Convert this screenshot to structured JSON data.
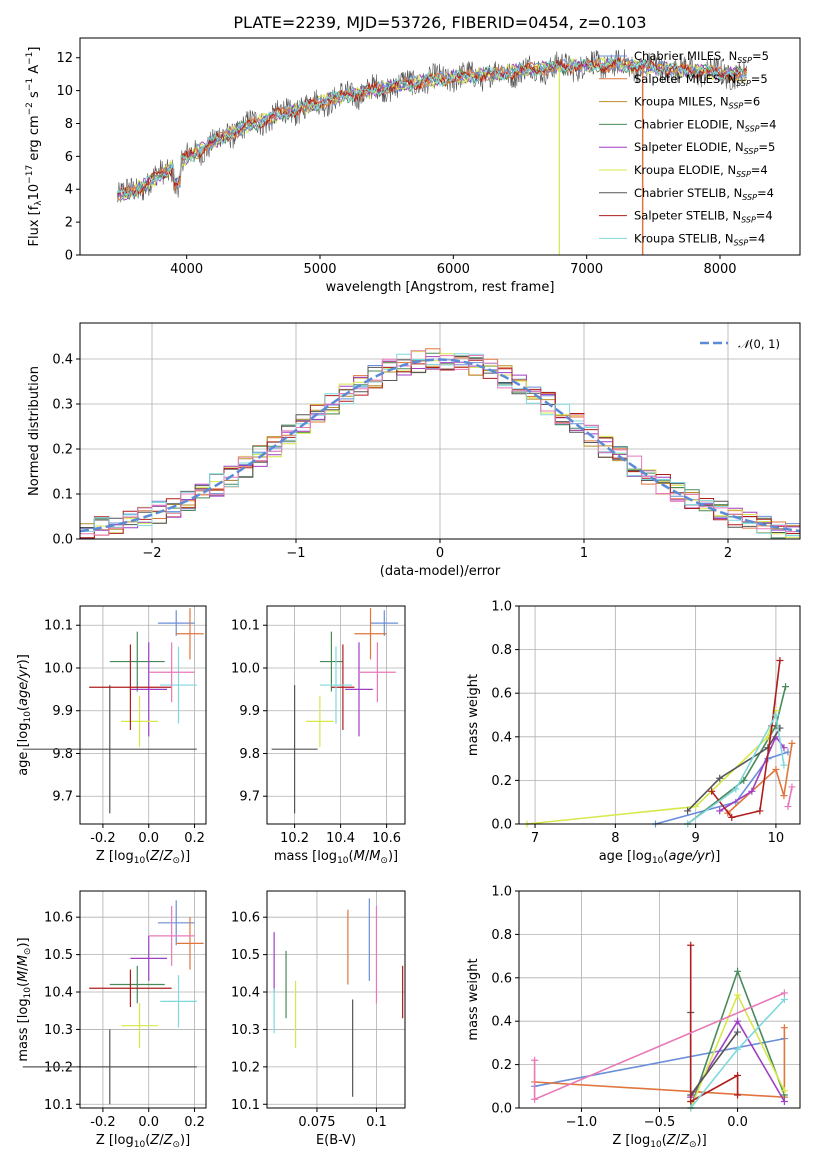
{
  "figure": {
    "title": "PLATE=2239, MJD=53726, FIBERID=0454, z=0.103"
  },
  "colors": {
    "Chabrier MILES": "#6a8fd8",
    "Salpeter MILES": "#e0763d",
    "Kroupa MILES": "#b8902a",
    "Chabrier ELODIE": "#4a8a5a",
    "Salpeter ELODIE": "#a03ec4",
    "Kroupa ELODIE": "#d6e84a",
    "Chabrier STELIB": "#555555",
    "Salpeter STELIB": "#b01d1d",
    "Kroupa STELIB": "#7fd8de",
    "extra_pink": "#e879b8",
    "normal_curve": "#5b8bd6"
  },
  "chart_data": [
    {
      "id": "spectrum",
      "type": "line",
      "title": "PLATE=2239, MJD=53726, FIBERID=0454, z=0.103",
      "xlabel": "wavelength [Angstrom, rest frame]",
      "ylabel": "Flux [f_λ 10^-17 erg cm^-2 s^-1 A^-1]",
      "xlim": [
        3200,
        8600
      ],
      "ylim": [
        0,
        13.2
      ],
      "xticks": [
        4000,
        5000,
        6000,
        7000,
        8000
      ],
      "yticks": [
        0,
        2,
        4,
        6,
        8,
        10,
        12
      ],
      "grid": false,
      "legend_position": "top-right",
      "legend": [
        {
          "label": "Chabrier MILES, N_SSP=5",
          "color": "#6a8fd8"
        },
        {
          "label": "Salpeter MILES, N_SSP=5",
          "color": "#e0763d"
        },
        {
          "label": "Kroupa MILES, N_SSP=6",
          "color": "#b8902a"
        },
        {
          "label": "Chabrier ELODIE, N_SSP=4",
          "color": "#4a8a5a"
        },
        {
          "label": "Salpeter ELODIE, N_SSP=5",
          "color": "#a03ec4"
        },
        {
          "label": "Kroupa ELODIE, N_SSP=4",
          "color": "#d6e84a"
        },
        {
          "label": "Chabrier STELIB, N_SSP=4",
          "color": "#555555"
        },
        {
          "label": "Salpeter STELIB, N_SSP=4",
          "color": "#b01d1d"
        },
        {
          "label": "Kroupa STELIB, N_SSP=4",
          "color": "#7fd8de"
        }
      ],
      "continuum": {
        "x": [
          3500,
          3700,
          3900,
          4100,
          4300,
          4500,
          4800,
          5000,
          5200,
          5500,
          5800,
          6000,
          6300,
          6600,
          6900,
          7200,
          7500,
          7800,
          8100,
          8400
        ],
        "y": [
          3.6,
          4.3,
          5.4,
          6.4,
          7.3,
          8.0,
          8.8,
          9.3,
          9.7,
          10.2,
          10.6,
          10.8,
          11.0,
          11.3,
          11.5,
          11.6,
          11.4,
          11.2,
          11.0,
          10.9
        ]
      }
    },
    {
      "id": "residuals",
      "type": "bar",
      "xlabel": "(data-model)/error",
      "ylabel": "Normed distribution",
      "xlim": [
        -2.5,
        2.5
      ],
      "ylim": [
        0,
        0.48
      ],
      "xticks": [
        -2,
        -1,
        0,
        1,
        2
      ],
      "yticks": [
        0.0,
        0.1,
        0.2,
        0.3,
        0.4
      ],
      "grid": true,
      "legend_position": "top-right",
      "legend": [
        {
          "label": "N(0,1)",
          "color": "#5b8bd6",
          "style": "dashed"
        }
      ],
      "bin_width": 0.1
    },
    {
      "id": "age_vs_Z",
      "type": "scatter",
      "xlabel": "Z [log10(Z/Z⊙)]",
      "ylabel": "age  [log10(age/yr)]",
      "xlim": [
        -0.3,
        0.25
      ],
      "ylim": [
        9.635,
        10.145
      ],
      "xticks": [
        -0.2,
        0.0,
        0.2
      ],
      "yticks": [
        9.7,
        9.8,
        9.9,
        10.0,
        10.1
      ],
      "grid": true,
      "points": [
        {
          "series": "Chabrier MILES",
          "x": 0.12,
          "y": 10.105,
          "xerr": 0.08,
          "yerr": 0.03
        },
        {
          "series": "Salpeter MILES",
          "x": 0.18,
          "y": 10.08,
          "xerr": 0.06,
          "yerr": 0.06
        },
        {
          "series": "Chabrier ELODIE",
          "x": -0.05,
          "y": 10.015,
          "xerr": 0.12,
          "yerr": 0.07
        },
        {
          "series": "Salpeter ELODIE",
          "x": 0.0,
          "y": 9.95,
          "xerr": 0.08,
          "yerr": 0.11
        },
        {
          "series": "Kroupa ELODIE",
          "x": -0.04,
          "y": 9.875,
          "xerr": 0.08,
          "yerr": 0.06
        },
        {
          "series": "Chabrier STELIB",
          "x": -0.17,
          "y": 9.81,
          "xerr": 0.38,
          "yerr": 0.15
        },
        {
          "series": "Salpeter STELIB",
          "x": -0.08,
          "y": 9.955,
          "xerr": 0.18,
          "yerr": 0.1
        },
        {
          "series": "Kroupa STELIB",
          "x": 0.13,
          "y": 9.96,
          "xerr": 0.08,
          "yerr": 0.09
        },
        {
          "series": "extra_pink",
          "x": 0.1,
          "y": 9.99,
          "xerr": 0.1,
          "yerr": 0.07
        }
      ]
    },
    {
      "id": "age_vs_mass",
      "type": "scatter",
      "xlabel": "mass [log10(M/M⊙)]",
      "ylabel": "",
      "xlim": [
        10.08,
        10.68
      ],
      "ylim": [
        9.635,
        10.145
      ],
      "xticks": [
        10.2,
        10.4,
        10.6
      ],
      "yticks": [
        9.7,
        9.8,
        9.9,
        10.0,
        10.1
      ],
      "grid": true,
      "points": [
        {
          "series": "Chabrier MILES",
          "x": 10.59,
          "y": 10.105,
          "xerr": 0.06,
          "yerr": 0.03
        },
        {
          "series": "Salpeter MILES",
          "x": 10.53,
          "y": 10.08,
          "xerr": 0.07,
          "yerr": 0.06
        },
        {
          "series": "Chabrier ELODIE",
          "x": 10.36,
          "y": 10.015,
          "xerr": 0.05,
          "yerr": 0.07
        },
        {
          "series": "Salpeter ELODIE",
          "x": 10.48,
          "y": 9.95,
          "xerr": 0.06,
          "yerr": 0.11
        },
        {
          "series": "Kroupa ELODIE",
          "x": 10.31,
          "y": 9.875,
          "xerr": 0.06,
          "yerr": 0.06
        },
        {
          "series": "Chabrier STELIB",
          "x": 10.2,
          "y": 9.81,
          "xerr": 0.1,
          "yerr": 0.15
        },
        {
          "series": "Salpeter STELIB",
          "x": 10.41,
          "y": 9.955,
          "xerr": 0.05,
          "yerr": 0.1
        },
        {
          "series": "Kroupa STELIB",
          "x": 10.38,
          "y": 9.96,
          "xerr": 0.07,
          "yerr": 0.09
        },
        {
          "series": "extra_pink",
          "x": 10.56,
          "y": 9.99,
          "xerr": 0.08,
          "yerr": 0.07
        }
      ]
    },
    {
      "id": "massweight_vs_age",
      "type": "line",
      "xlabel": "age  [log10(age/yr)]",
      "ylabel": "mass weight",
      "xlim": [
        6.8,
        10.3
      ],
      "ylim": [
        0,
        1.0
      ],
      "xticks": [
        7,
        8,
        9,
        10
      ],
      "yticks": [
        0.0,
        0.2,
        0.4,
        0.6,
        0.8,
        1.0
      ],
      "grid": true,
      "series": [
        {
          "name": "Chabrier MILES",
          "x": [
            8.5,
            9.5,
            9.9,
            10.15
          ],
          "y": [
            0.0,
            0.1,
            0.3,
            0.33
          ]
        },
        {
          "name": "Salpeter MILES",
          "x": [
            9.4,
            10.0,
            10.1,
            10.2
          ],
          "y": [
            0.05,
            0.25,
            0.13,
            0.37
          ]
        },
        {
          "name": "Chabrier ELODIE",
          "x": [
            8.9,
            9.6,
            10.0,
            10.12
          ],
          "y": [
            0.0,
            0.2,
            0.45,
            0.63
          ]
        },
        {
          "name": "Salpeter ELODIE",
          "x": [
            9.3,
            9.7,
            10.0,
            10.1
          ],
          "y": [
            0.06,
            0.15,
            0.4,
            0.35
          ]
        },
        {
          "name": "Kroupa ELODIE",
          "x": [
            6.9,
            9.0,
            9.9,
            10.0
          ],
          "y": [
            0.0,
            0.08,
            0.4,
            0.52
          ]
        },
        {
          "name": "Chabrier STELIB",
          "x": [
            8.9,
            9.3,
            9.9,
            10.05
          ],
          "y": [
            0.06,
            0.21,
            0.35,
            0.44
          ]
        },
        {
          "name": "Salpeter STELIB",
          "x": [
            9.2,
            9.45,
            9.8,
            9.95,
            10.05
          ],
          "y": [
            0.15,
            0.03,
            0.06,
            0.45,
            0.75
          ]
        },
        {
          "name": "Kroupa STELIB",
          "x": [
            8.9,
            9.5,
            10.0,
            10.1
          ],
          "y": [
            0.0,
            0.16,
            0.5,
            0.27
          ]
        },
        {
          "name": "extra_pink",
          "x": [
            10.15,
            10.2
          ],
          "y": [
            0.08,
            0.17
          ]
        }
      ]
    },
    {
      "id": "mass_vs_Z",
      "type": "scatter",
      "xlabel": "Z [log10(Z/Z⊙)]",
      "ylabel": "mass [log10(M/M⊙)]",
      "xlim": [
        -0.3,
        0.25
      ],
      "ylim": [
        10.09,
        10.67
      ],
      "xticks": [
        -0.2,
        0.0,
        0.2
      ],
      "yticks": [
        10.1,
        10.2,
        10.3,
        10.4,
        10.5,
        10.6
      ],
      "grid": true,
      "points": [
        {
          "series": "Chabrier MILES",
          "x": 0.12,
          "y": 10.585,
          "xerr": 0.08,
          "yerr": 0.06
        },
        {
          "series": "Salpeter MILES",
          "x": 0.18,
          "y": 10.53,
          "xerr": 0.06,
          "yerr": 0.07
        },
        {
          "series": "Chabrier ELODIE",
          "x": -0.05,
          "y": 10.42,
          "xerr": 0.12,
          "yerr": 0.05
        },
        {
          "series": "Salpeter ELODIE",
          "x": 0.0,
          "y": 10.49,
          "xerr": 0.08,
          "yerr": 0.06
        },
        {
          "series": "Kroupa ELODIE",
          "x": -0.04,
          "y": 10.31,
          "xerr": 0.08,
          "yerr": 0.06
        },
        {
          "series": "Chabrier STELIB",
          "x": -0.17,
          "y": 10.2,
          "xerr": 0.38,
          "yerr": 0.1
        },
        {
          "series": "Salpeter STELIB",
          "x": -0.08,
          "y": 10.41,
          "xerr": 0.18,
          "yerr": 0.05
        },
        {
          "series": "Kroupa STELIB",
          "x": 0.13,
          "y": 10.375,
          "xerr": 0.08,
          "yerr": 0.07
        },
        {
          "series": "extra_pink",
          "x": 0.1,
          "y": 10.55,
          "xerr": 0.1,
          "yerr": 0.08
        }
      ]
    },
    {
      "id": "mass_vs_EBV",
      "type": "scatter",
      "xlabel": "E(B-V)",
      "ylabel": "",
      "xlim": [
        0.054,
        0.112
      ],
      "ylim": [
        10.09,
        10.67
      ],
      "xticks": [
        0.075,
        0.1
      ],
      "yticks": [
        10.1,
        10.2,
        10.3,
        10.4,
        10.5,
        10.6
      ],
      "grid": true,
      "points": [
        {
          "series": "Chabrier MILES",
          "x": 0.097,
          "y": 10.54,
          "yerr": 0.11
        },
        {
          "series": "Salpeter MILES",
          "x": 0.088,
          "y": 10.52,
          "yerr": 0.1
        },
        {
          "series": "Chabrier ELODIE",
          "x": 0.062,
          "y": 10.42,
          "yerr": 0.09
        },
        {
          "series": "Salpeter ELODIE",
          "x": 0.057,
          "y": 10.48,
          "yerr": 0.08
        },
        {
          "series": "Kroupa ELODIE",
          "x": 0.066,
          "y": 10.34,
          "yerr": 0.09
        },
        {
          "series": "Chabrier STELIB",
          "x": 0.09,
          "y": 10.25,
          "yerr": 0.13
        },
        {
          "series": "Salpeter STELIB",
          "x": 0.111,
          "y": 10.4,
          "yerr": 0.07
        },
        {
          "series": "Kroupa STELIB",
          "x": 0.057,
          "y": 10.35,
          "yerr": 0.06
        },
        {
          "series": "extra_pink",
          "x": 0.1,
          "y": 10.5,
          "yerr": 0.13
        }
      ]
    },
    {
      "id": "massweight_vs_Z",
      "type": "line",
      "xlabel": "Z [log10(Z/Z⊙)]",
      "ylabel": "mass weight",
      "xlim": [
        -1.4,
        0.4
      ],
      "ylim": [
        0,
        1.0
      ],
      "xticks": [
        -1.0,
        -0.5,
        0.0
      ],
      "yticks": [
        0.0,
        0.2,
        0.4,
        0.6,
        0.8,
        1.0
      ],
      "grid": true,
      "series": [
        {
          "name": "Chabrier MILES",
          "x": [
            -1.3,
            0.3
          ],
          "y": [
            0.1,
            0.32
          ]
        },
        {
          "name": "Salpeter MILES",
          "x": [
            -1.3,
            0.3,
            0.3
          ],
          "y": [
            0.12,
            0.05,
            0.37
          ]
        },
        {
          "name": "Chabrier ELODIE",
          "x": [
            -0.3,
            0.0,
            0.3
          ],
          "y": [
            0.0,
            0.63,
            0.06
          ]
        },
        {
          "name": "Salpeter ELODIE",
          "x": [
            -0.3,
            0.0,
            0.3
          ],
          "y": [
            0.05,
            0.4,
            0.03
          ]
        },
        {
          "name": "Kroupa ELODIE",
          "x": [
            -0.3,
            0.0,
            0.3
          ],
          "y": [
            0.0,
            0.52,
            0.08
          ]
        },
        {
          "name": "Chabrier STELIB",
          "x": [
            -0.3,
            -0.3,
            0.0
          ],
          "y": [
            0.44,
            0.06,
            0.35
          ]
        },
        {
          "name": "Salpeter STELIB",
          "x": [
            -0.3,
            -0.3,
            0.0,
            0.0
          ],
          "y": [
            0.75,
            0.03,
            0.15,
            0.06
          ]
        },
        {
          "name": "Kroupa STELIB",
          "x": [
            -0.3,
            0.0,
            0.3
          ],
          "y": [
            0.0,
            0.27,
            0.5
          ]
        },
        {
          "name": "extra_pink",
          "x": [
            -1.3,
            -1.3,
            0.3
          ],
          "y": [
            0.22,
            0.04,
            0.53
          ]
        }
      ]
    }
  ]
}
